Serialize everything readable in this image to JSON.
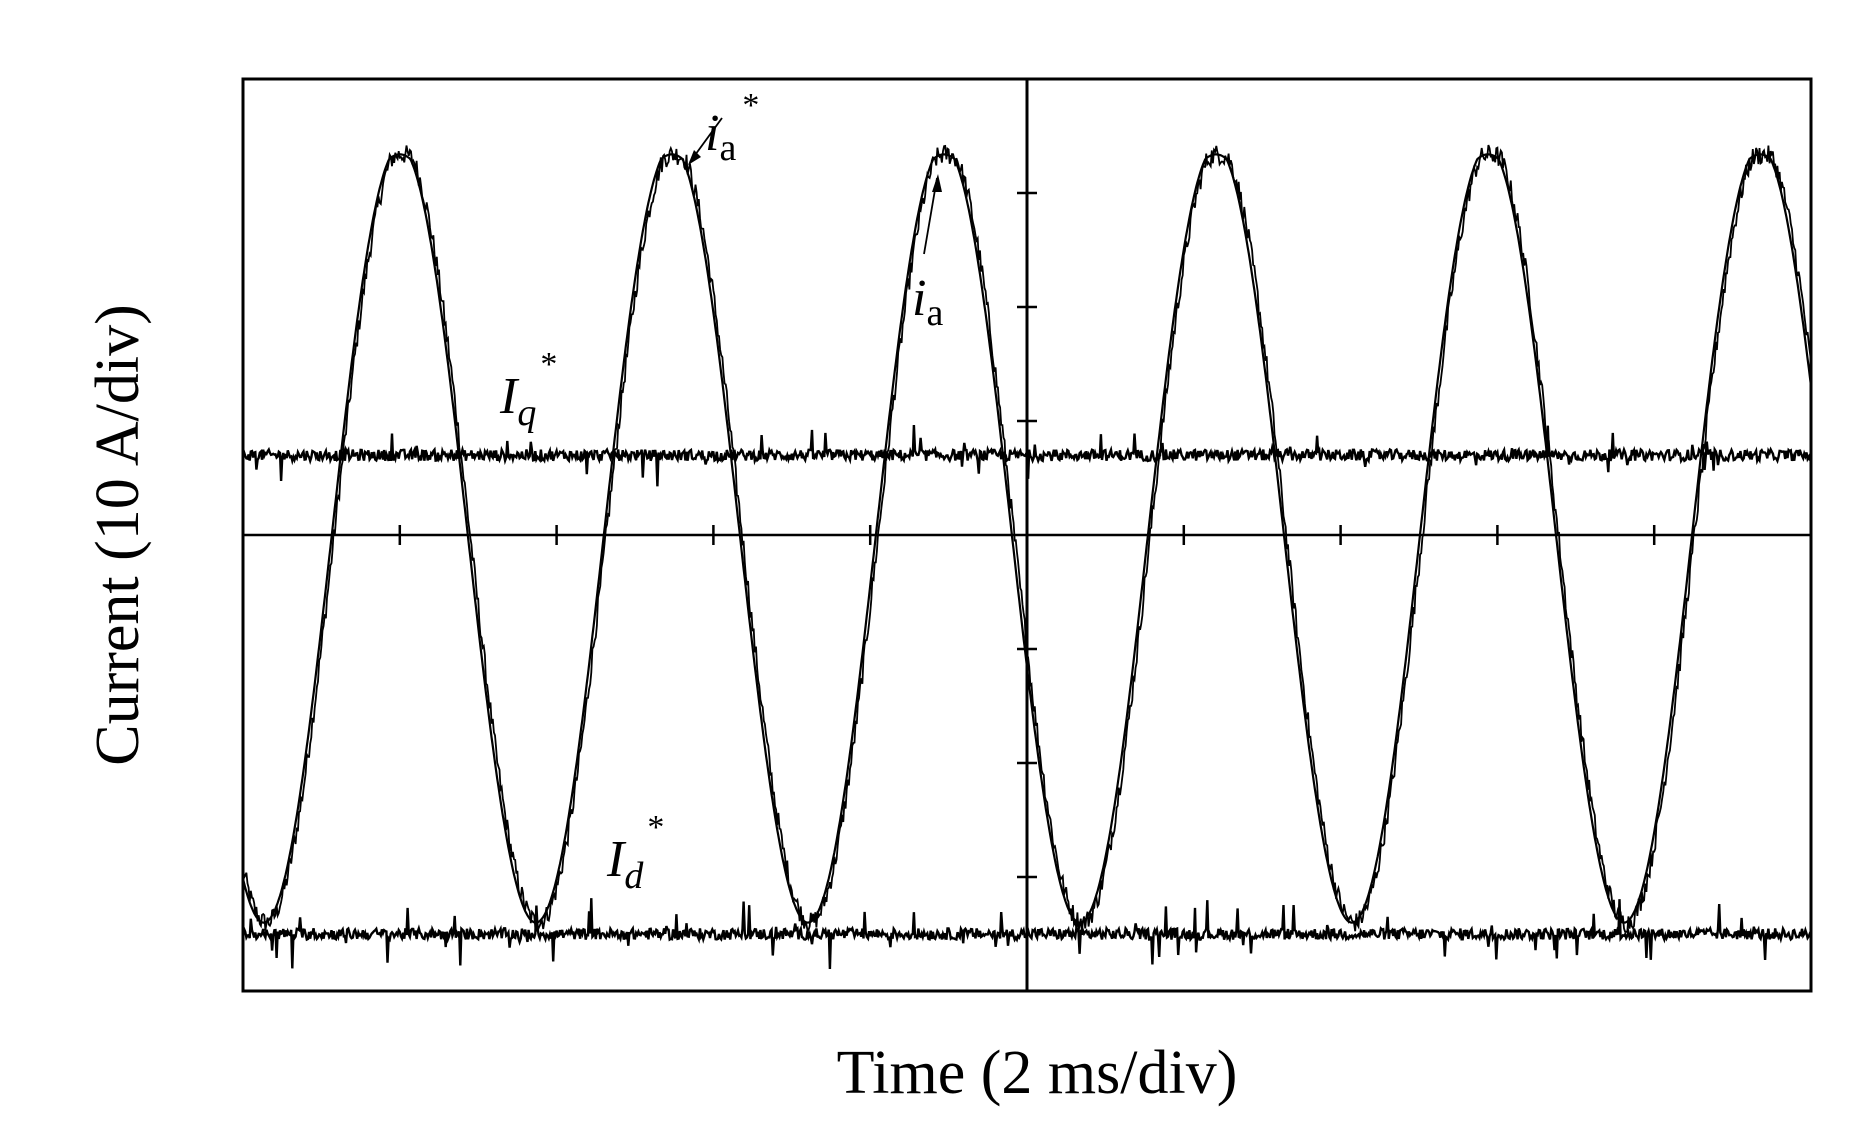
{
  "chart_data": {
    "type": "line",
    "xlabel": "Time (2 ms/div)",
    "ylabel": "Current (10 A/div)",
    "xlim": [
      0,
      20
    ],
    "ylim": [
      -40,
      40
    ],
    "x_unit": "ms",
    "y_unit": "A",
    "grid": false,
    "series": [
      {
        "name": "ia*",
        "amplitude": 34,
        "offset": 0,
        "period_ms": 3.47,
        "phase_peak_ms": 2.0,
        "color": "#000000"
      },
      {
        "name": "ia",
        "amplitude": 34,
        "offset": 0,
        "period_ms": 3.47,
        "phase_peak_ms": 2.0,
        "color": "#000000"
      },
      {
        "name": "Iq*",
        "value": 7,
        "color": "#000000"
      },
      {
        "name": "Id*",
        "value": -35,
        "color": "#000000"
      }
    ],
    "annotations": [
      {
        "main": "i",
        "sub": "a",
        "sup": "*",
        "target": "ia*"
      },
      {
        "main": "i",
        "sub": "a",
        "sup": "",
        "target": "ia"
      },
      {
        "main": "I",
        "sub": "q",
        "sup": "*",
        "target": "Iq*"
      },
      {
        "main": "I",
        "sub": "d",
        "sup": "*",
        "target": "Id*"
      }
    ]
  }
}
